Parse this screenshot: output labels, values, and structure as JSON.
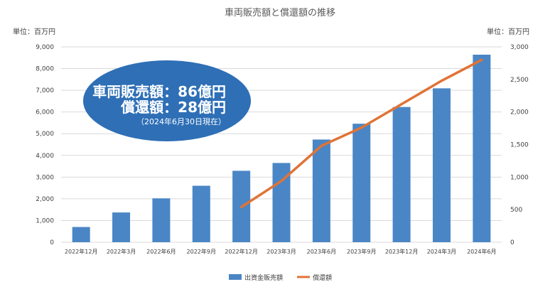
{
  "chart_data": {
    "type": "bar",
    "title": "車両販売額と償還額の推移",
    "left_unit_label": "単位：百万円",
    "right_unit_label": "単位：百万円",
    "categories": [
      "2022年12月",
      "2022年3月",
      "2022年6月",
      "2022年9月",
      "2022年12月",
      "2023年3月",
      "2023年6月",
      "2023年9月",
      "2023年12月",
      "2024年3月",
      "2024年6月"
    ],
    "left_axis": {
      "min": 0,
      "max": 9000,
      "ticks": [
        "0",
        "1,000",
        "2,000",
        "3,000",
        "4,000",
        "5,000",
        "6,000",
        "7,000",
        "8,000",
        "9,000"
      ]
    },
    "right_axis": {
      "min": 0,
      "max": 3000,
      "ticks": [
        "0",
        "500",
        "1,000",
        "1,500",
        "2,000",
        "2,500",
        "3,000"
      ]
    },
    "gridlines": true,
    "legend_position": "bottom",
    "series": [
      {
        "name": "出資金販売額",
        "type": "bar",
        "axis": "left",
        "color": "#4a86c5",
        "values": [
          700,
          1370,
          2020,
          2600,
          3290,
          3650,
          4730,
          5460,
          6230,
          7090,
          8640
        ]
      },
      {
        "name": "償還額",
        "type": "line",
        "axis": "right",
        "color": "#e07336",
        "values": [
          null,
          null,
          null,
          null,
          540,
          940,
          1480,
          1760,
          2120,
          2480,
          2800
        ]
      }
    ],
    "annotation": {
      "line1": "車両販売額：86億円",
      "line2": "償還額：28億円",
      "line3": "（2024年6月30日現在）",
      "fill": "#2e6fb6"
    }
  }
}
